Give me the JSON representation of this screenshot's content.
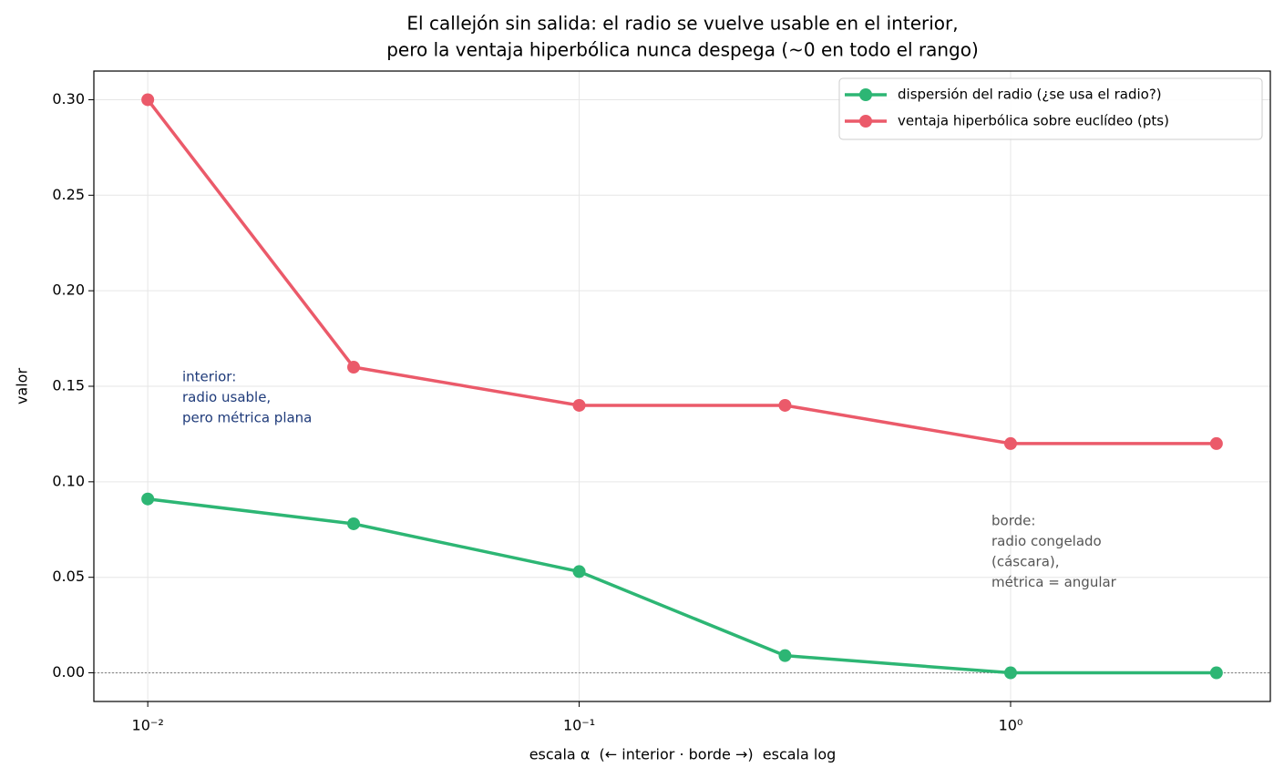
{
  "chart_data": {
    "type": "line",
    "title": [
      "El callejón sin salida: el radio se vuelve usable en el interior,",
      "pero la ventaja hiperbólica nunca despega (~0 en todo el rango)"
    ],
    "x_label": "escala α  (← interior · borde →)  escala log",
    "y_label": "valor",
    "x": [
      0.01,
      0.03,
      0.1,
      0.3,
      1,
      3
    ],
    "series": [
      {
        "name": "dispersión del radio (¿se usa el radio?)",
        "color": "#2db674",
        "values": [
          0.091,
          0.078,
          0.053,
          0.009,
          0,
          0
        ]
      },
      {
        "name": "ventaja hiperbólica sobre euclídeo (pts)",
        "color": "#eb5a6a",
        "values": [
          0.3,
          0.16,
          0.14,
          0.14,
          0.12,
          0.12
        ]
      }
    ],
    "xscale": "log",
    "xlim": [
      0.0075,
      4.0
    ],
    "ylim": [
      -0.015,
      0.315
    ],
    "xticks": [
      {
        "value": 0.01,
        "label": "10⁻²"
      },
      {
        "value": 0.1,
        "label": "10⁻¹"
      },
      {
        "value": 1,
        "label": "10⁰"
      }
    ],
    "yticks": [
      {
        "value": 0,
        "label": "0.00"
      },
      {
        "value": 0.05,
        "label": "0.05"
      },
      {
        "value": 0.1,
        "label": "0.10"
      },
      {
        "value": 0.15,
        "label": "0.15"
      },
      {
        "value": 0.2,
        "label": "0.20"
      },
      {
        "value": 0.25,
        "label": "0.25"
      },
      {
        "value": 0.3,
        "label": "0.30"
      }
    ],
    "grid": true,
    "hline": 0,
    "legend": "upper right",
    "annotations": [
      {
        "lines": [
          "interior:",
          "radio usable,",
          "pero métrica plana"
        ],
        "color": "#1f3b7a"
      },
      {
        "lines": [
          "borde:",
          "radio congelado",
          "(cáscara),",
          "métrica = angular"
        ],
        "color": "#555555"
      }
    ]
  }
}
